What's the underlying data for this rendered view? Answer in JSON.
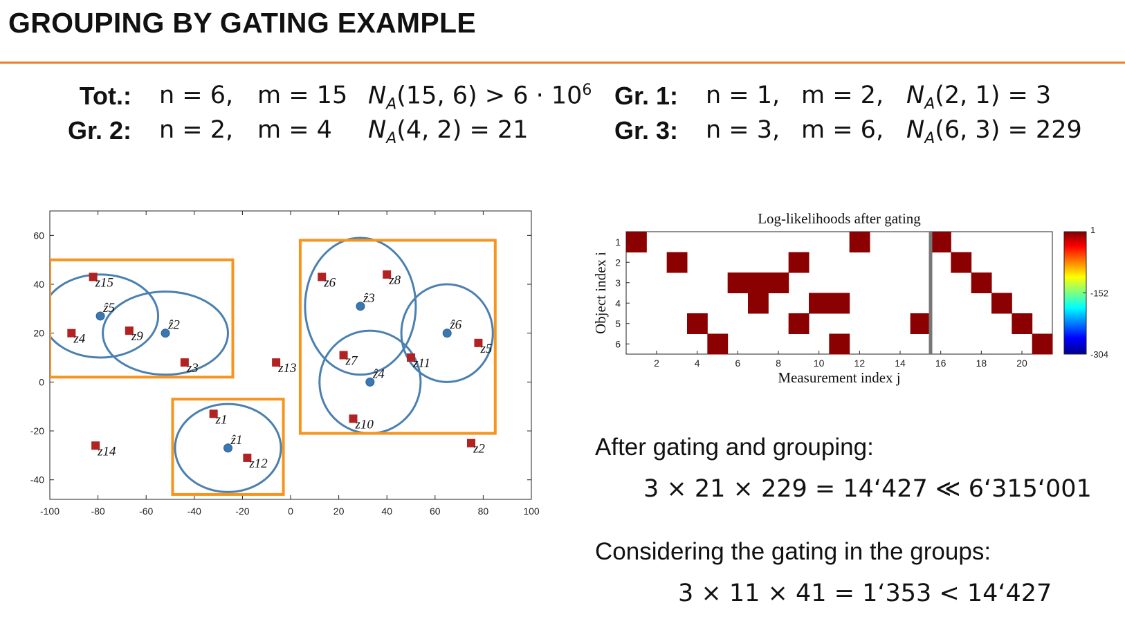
{
  "slide": {
    "title": "GROUPING BY GATING EXAMPLE",
    "stats": [
      {
        "label": "Tot.:",
        "n": "n = 6,",
        "m": "m = 15",
        "na": "N_A(15, 6) > 6 · 10^6"
      },
      {
        "label": "Gr. 2:",
        "n": "n = 2,",
        "m": "m = 4",
        "na": "N_A(4, 2) = 21"
      },
      {
        "label": "Gr. 1:",
        "n": "n = 1,",
        "m": "m = 2,",
        "na": "N_A(2, 1) = 3"
      },
      {
        "label": "Gr. 3:",
        "n": "n = 3,",
        "m": "m = 6,",
        "na": "N_A(6, 3) = 229"
      }
    ],
    "after_text": "After gating and grouping:",
    "after_eq": "3 × 21 × 229 = 14‘427 ≪ 6‘315‘001",
    "consider_text": "Considering the gating in the groups:",
    "consider_eq": "3 × 11 × 41 = 1‘353 < 14‘427"
  },
  "chart_data": [
    {
      "type": "scatter",
      "xlim": [
        -100,
        100
      ],
      "ylim": [
        -48,
        70
      ],
      "xticks": [
        -100,
        -80,
        -60,
        -40,
        -20,
        0,
        20,
        40,
        60,
        80,
        100
      ],
      "yticks": [
        -40,
        -20,
        0,
        20,
        40,
        60
      ],
      "measurements": [
        {
          "label": "z1",
          "x": -32,
          "y": -13
        },
        {
          "label": "z2",
          "x": 75,
          "y": -25
        },
        {
          "label": "z3",
          "x": -44,
          "y": 8
        },
        {
          "label": "z4",
          "x": -91,
          "y": 20
        },
        {
          "label": "z5",
          "x": 78,
          "y": 16
        },
        {
          "label": "z6",
          "x": 13,
          "y": 43
        },
        {
          "label": "z7",
          "x": 22,
          "y": 11
        },
        {
          "label": "z8",
          "x": 40,
          "y": 44
        },
        {
          "label": "z9",
          "x": -67,
          "y": 21
        },
        {
          "label": "z10",
          "x": 26,
          "y": -15
        },
        {
          "label": "z11",
          "x": 50,
          "y": 10
        },
        {
          "label": "z12",
          "x": -18,
          "y": -31
        },
        {
          "label": "z13",
          "x": -6,
          "y": 8
        },
        {
          "label": "z14",
          "x": -81,
          "y": -26
        },
        {
          "label": "z15",
          "x": -82,
          "y": 43
        }
      ],
      "objects": [
        {
          "label": "ẑ1",
          "x": -26,
          "y": -27,
          "rx": 22,
          "ry": 18
        },
        {
          "label": "ẑ2",
          "x": -52,
          "y": 20,
          "rx": 26,
          "ry": 17
        },
        {
          "label": "ẑ3",
          "x": 29,
          "y": 31,
          "rx": 23,
          "ry": 28
        },
        {
          "label": "ẑ4",
          "x": 33,
          "y": 0,
          "rx": 21,
          "ry": 21
        },
        {
          "label": "ẑ5",
          "x": -79,
          "y": 27,
          "rx": 24,
          "ry": 17
        },
        {
          "label": "ẑ6",
          "x": 65,
          "y": 20,
          "rx": 19,
          "ry": 20
        }
      ],
      "groups": [
        {
          "x0": -100,
          "x1": -24,
          "y0": 2,
          "y1": 50
        },
        {
          "x0": -49,
          "x1": -3,
          "y0": -46,
          "y1": -7
        },
        {
          "x0": 4,
          "x1": 85,
          "y0": -21,
          "y1": 58
        }
      ],
      "colors": {
        "measurement": "#b22222",
        "object": "#3a77b3",
        "ellipse": "#4a80b0",
        "group": "#f7941d"
      }
    },
    {
      "type": "heatmap",
      "title": "Log-likelihoods after gating",
      "xlabel": "Measurement index j",
      "ylabel": "Object index i",
      "xticks": [
        2,
        4,
        6,
        8,
        10,
        12,
        14,
        16,
        18,
        20
      ],
      "yticks": [
        1,
        2,
        3,
        4,
        5,
        6
      ],
      "n_cols": 21,
      "n_rows": 6,
      "divider_after_col": 15,
      "cells": [
        [
          1,
          1
        ],
        [
          12,
          1
        ],
        [
          16,
          1
        ],
        [
          3,
          2
        ],
        [
          9,
          2
        ],
        [
          17,
          2
        ],
        [
          6,
          3
        ],
        [
          7,
          3
        ],
        [
          8,
          3
        ],
        [
          18,
          3
        ],
        [
          7,
          4
        ],
        [
          10,
          4
        ],
        [
          11,
          4
        ],
        [
          19,
          4
        ],
        [
          4,
          5
        ],
        [
          9,
          5
        ],
        [
          15,
          5
        ],
        [
          20,
          5
        ],
        [
          5,
          6
        ],
        [
          11,
          6
        ],
        [
          21,
          6
        ]
      ],
      "colorbar": {
        "max": "1",
        "mid": "-152",
        "min": "-304"
      },
      "cell_color": "#8b0000"
    }
  ]
}
